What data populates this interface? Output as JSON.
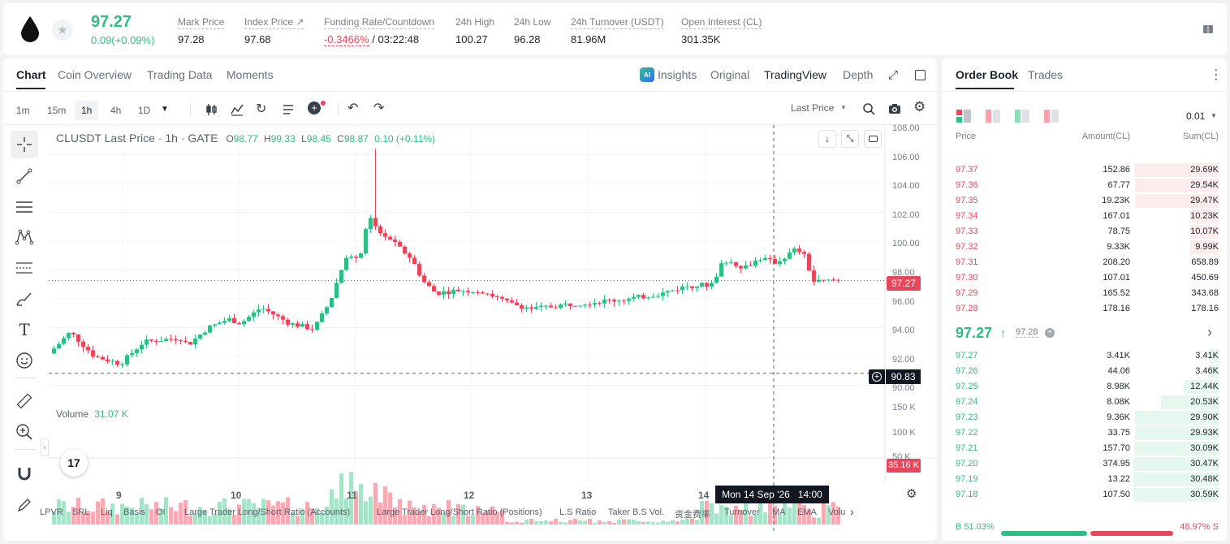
{
  "header": {
    "last_price": "97.27",
    "change": "0.09(+0.09%)",
    "stats": [
      {
        "label": "Mark Price",
        "value": "97.28"
      },
      {
        "label": "Index Price ↗",
        "value": "97.68"
      },
      {
        "label": "Funding Rate/Countdown",
        "value_red": "-0.3466%",
        "value": " / 03:22:48"
      },
      {
        "label": "24h High",
        "value": "100.27"
      },
      {
        "label": "24h Low",
        "value": "96.28"
      },
      {
        "label": "24h Turnover (USDT)",
        "value": "81.96M"
      },
      {
        "label": "Open Interest (CL)",
        "value": "301.35K"
      }
    ]
  },
  "chart_tabs": [
    "Chart",
    "Coin Overview",
    "Trading Data",
    "Moments"
  ],
  "view_tabs": [
    "Insights",
    "Original",
    "TradingView",
    "Depth"
  ],
  "ai_badge": "AI",
  "timeframes": [
    "1m",
    "15m",
    "1h",
    "4h",
    "1D"
  ],
  "price_type": "Last Price",
  "legend": {
    "symbol": "CLUSDT Last Price · 1h · GATE",
    "o_lbl": "O",
    "o": "98.77",
    "h_lbl": "H",
    "h": "99.33",
    "l_lbl": "L",
    "l": "98.45",
    "c_lbl": "C",
    "c": "98.87",
    "chg": "0.10 (+0.11%)"
  },
  "volume_legend": {
    "label": "Volume",
    "value": "31.07 K"
  },
  "price_tag": "97.27",
  "cross_tag": "90.83",
  "vol_tag": "35.16 K",
  "time_tag": "Mon 14 Sep '26   14:00",
  "y_labels": [
    "108.00",
    "106.00",
    "104.00",
    "102.00",
    "100.00",
    "98.00",
    "96.00",
    "94.00",
    "92.00",
    "90.00"
  ],
  "vol_labels": [
    "150 K",
    "100 K",
    "50 K"
  ],
  "x_labels": [
    "9",
    "10",
    "11",
    "12",
    "13",
    "14"
  ],
  "tv_logo": "17",
  "indicators": [
    "LPVR",
    "SRL",
    "Liq",
    "Basis",
    "OI",
    "Large Trader Long/Short Ratio (Accounts)",
    "Large Trader Long/Short Ratio (Positions)",
    "L.S Ratio",
    "Taker B.S Vol.",
    "资金费率",
    "Turnover",
    "MA",
    "EMA",
    "Volu"
  ],
  "orderbook": {
    "tabs": [
      "Order Book",
      "Trades"
    ],
    "precision": "0.01",
    "headers": {
      "price": "Price",
      "amount": "Amount(CL)",
      "sum": "Sum(CL)"
    },
    "asks": [
      {
        "price": "97.37",
        "amount": "152.86",
        "sum": "29.69K",
        "depth": 0.99
      },
      {
        "price": "97.36",
        "amount": "67.77",
        "sum": "29.54K",
        "depth": 0.98
      },
      {
        "price": "97.35",
        "amount": "19.23K",
        "sum": "29.47K",
        "depth": 0.98
      },
      {
        "price": "97.34",
        "amount": "167.01",
        "sum": "10.23K",
        "depth": 0.34
      },
      {
        "price": "97.33",
        "amount": "78.75",
        "sum": "10.07K",
        "depth": 0.34
      },
      {
        "price": "97.32",
        "amount": "9.33K",
        "sum": "9.99K",
        "depth": 0.33
      },
      {
        "price": "97.31",
        "amount": "208.20",
        "sum": "658.89",
        "depth": 0.0
      },
      {
        "price": "97.30",
        "amount": "107.01",
        "sum": "450.69",
        "depth": 0.0
      },
      {
        "price": "97.29",
        "amount": "165.52",
        "sum": "343.68",
        "depth": 0.0
      },
      {
        "price": "97.28",
        "amount": "178.16",
        "sum": "178.16",
        "depth": 0.0
      }
    ],
    "mid_price": "97.27",
    "mid_arrow": "↑",
    "mid_mark": "97.28",
    "bids": [
      {
        "price": "97.27",
        "amount": "3.41K",
        "sum": "3.41K",
        "depth": 0.11
      },
      {
        "price": "97.26",
        "amount": "44.06",
        "sum": "3.46K",
        "depth": 0.12
      },
      {
        "price": "97.25",
        "amount": "8.98K",
        "sum": "12.44K",
        "depth": 0.41
      },
      {
        "price": "97.24",
        "amount": "8.08K",
        "sum": "20.53K",
        "depth": 0.68
      },
      {
        "price": "97.23",
        "amount": "9.36K",
        "sum": "29.90K",
        "depth": 0.98
      },
      {
        "price": "97.22",
        "amount": "33.75",
        "sum": "29.93K",
        "depth": 0.98
      },
      {
        "price": "97.21",
        "amount": "157.70",
        "sum": "30.09K",
        "depth": 0.99
      },
      {
        "price": "97.20",
        "amount": "374.95",
        "sum": "30.47K",
        "depth": 1.0
      },
      {
        "price": "97.19",
        "amount": "13.22",
        "sum": "30.48K",
        "depth": 1.0
      },
      {
        "price": "97.18",
        "amount": "107.50",
        "sum": "30.59K",
        "depth": 1.0
      }
    ],
    "buy_label": "B 51.03%",
    "sell_label": "48.97% S",
    "buy_ratio": 0.5103
  },
  "colors": {
    "up": "#2ebd85",
    "down": "#e8475b",
    "up_light": "#e6f7ef",
    "down_light": "#fdeced"
  }
}
